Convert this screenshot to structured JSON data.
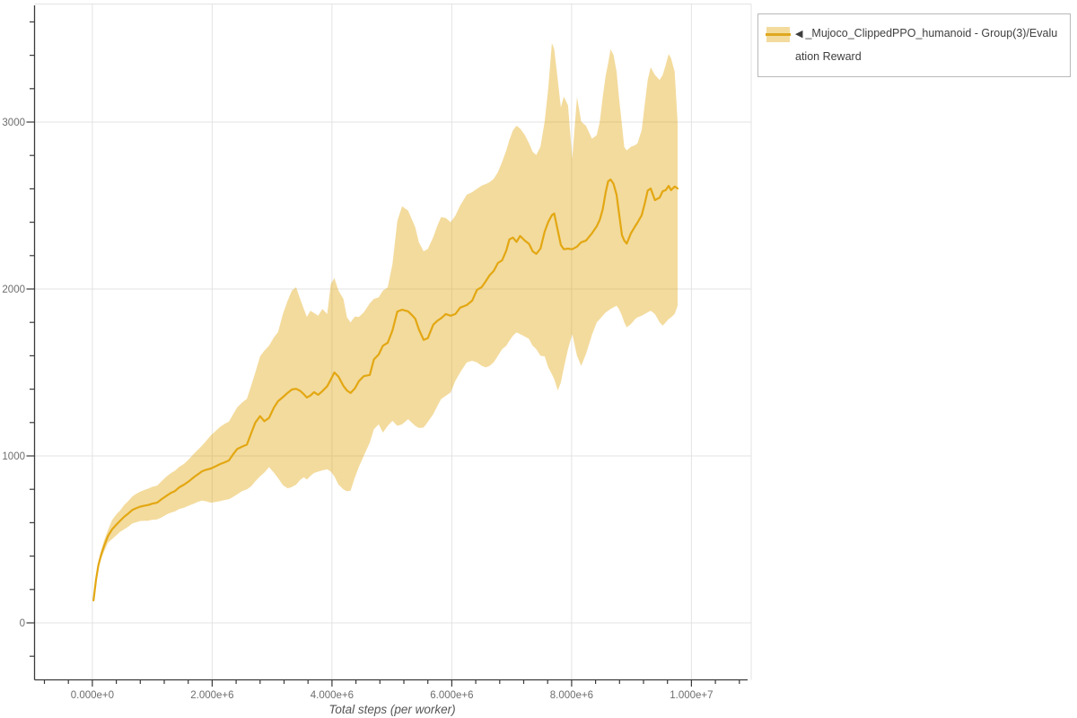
{
  "page": {
    "background": "#ffffff"
  },
  "legend": {
    "marker": "◀",
    "label": "_Mujoco_ClippedPPO_humanoid - Group(3)/Evaluation Reward"
  },
  "colors": {
    "line": "#e3a712",
    "band_fill": "#e3a712",
    "band_opacity": 0.41,
    "grid": "#e3e3e3",
    "axis": "#3a3a3a",
    "tick_label": "#6e6e6e",
    "axis_title": "#555555",
    "legend_border": "#b9b9b9"
  },
  "chart_data": {
    "type": "line",
    "title": "",
    "xlabel": "Total steps (per worker)",
    "ylabel": "",
    "grid": true,
    "legend_position": "top-right",
    "x_tick_labels": [
      "0.000e+0",
      "2.000e+6",
      "4.000e+6",
      "6.000e+6",
      "8.000e+6",
      "1.000e+7"
    ],
    "x_tick_values_millions": [
      0,
      2,
      4,
      6,
      8,
      10
    ],
    "x_minor_tick_step_millions": 0.4,
    "xlim_millions": [
      -0.97,
      11.0
    ],
    "y_tick_labels": [
      "0",
      "1000",
      "2000",
      "3000"
    ],
    "y_tick_values": [
      0,
      1000,
      2000,
      3000
    ],
    "y_minor_tick_step": 200,
    "ylim": [
      -340,
      3710
    ],
    "series": [
      {
        "name": "◀ _Mujoco_ClippedPPO_humanoid - Group(3)/Evaluation Reward",
        "color": "#e3a712",
        "band_opacity": 0.41,
        "points_format": [
          "steps_millions",
          "mean_reward",
          "band_low",
          "band_high"
        ],
        "points": [
          [
            0.02,
            135,
            128,
            142
          ],
          [
            0.06,
            255,
            240,
            270
          ],
          [
            0.1,
            345,
            325,
            365
          ],
          [
            0.15,
            412,
            386,
            438
          ],
          [
            0.2,
            465,
            432,
            498
          ],
          [
            0.26,
            520,
            480,
            556
          ],
          [
            0.33,
            560,
            502,
            616
          ],
          [
            0.4,
            588,
            524,
            650
          ],
          [
            0.46,
            610,
            544,
            672
          ],
          [
            0.53,
            635,
            560,
            706
          ],
          [
            0.6,
            655,
            576,
            730
          ],
          [
            0.67,
            677,
            596,
            758
          ],
          [
            0.74,
            688,
            604,
            775
          ],
          [
            0.8,
            696,
            610,
            786
          ],
          [
            0.87,
            702,
            612,
            796
          ],
          [
            0.93,
            706,
            612,
            804
          ],
          [
            1.0,
            714,
            618,
            815
          ],
          [
            1.08,
            720,
            620,
            822
          ],
          [
            1.16,
            742,
            632,
            850
          ],
          [
            1.24,
            762,
            650,
            878
          ],
          [
            1.31,
            778,
            660,
            896
          ],
          [
            1.38,
            790,
            668,
            912
          ],
          [
            1.45,
            812,
            682,
            935
          ],
          [
            1.53,
            828,
            690,
            952
          ],
          [
            1.61,
            848,
            702,
            980
          ],
          [
            1.7,
            874,
            715,
            1015
          ],
          [
            1.77,
            892,
            726,
            1040
          ],
          [
            1.83,
            908,
            733,
            1062
          ],
          [
            1.9,
            917,
            728,
            1090
          ],
          [
            1.98,
            925,
            720,
            1124
          ],
          [
            2.06,
            938,
            724,
            1150
          ],
          [
            2.14,
            952,
            730,
            1176
          ],
          [
            2.21,
            962,
            736,
            1192
          ],
          [
            2.28,
            973,
            741,
            1206
          ],
          [
            2.35,
            1010,
            755,
            1250
          ],
          [
            2.42,
            1042,
            770,
            1292
          ],
          [
            2.5,
            1056,
            790,
            1320
          ],
          [
            2.58,
            1068,
            800,
            1342
          ],
          [
            2.65,
            1135,
            818,
            1420
          ],
          [
            2.72,
            1200,
            848,
            1500
          ],
          [
            2.8,
            1238,
            878,
            1597
          ],
          [
            2.87,
            1208,
            900,
            1630
          ],
          [
            2.95,
            1228,
            933,
            1661
          ],
          [
            3.03,
            1290,
            900,
            1710
          ],
          [
            3.1,
            1328,
            868,
            1742
          ],
          [
            3.18,
            1352,
            825,
            1850
          ],
          [
            3.26,
            1378,
            806,
            1930
          ],
          [
            3.33,
            1398,
            814,
            1990
          ],
          [
            3.4,
            1402,
            828,
            2011
          ],
          [
            3.47,
            1390,
            856,
            1940
          ],
          [
            3.53,
            1370,
            872,
            1880
          ],
          [
            3.58,
            1350,
            858,
            1833
          ],
          [
            3.64,
            1362,
            880,
            1870
          ],
          [
            3.7,
            1382,
            898,
            1856
          ],
          [
            3.77,
            1366,
            906,
            1840
          ],
          [
            3.84,
            1388,
            914,
            1880
          ],
          [
            3.92,
            1418,
            920,
            1850
          ],
          [
            3.98,
            1458,
            906,
            2030
          ],
          [
            4.04,
            1500,
            878,
            2065
          ],
          [
            4.11,
            1474,
            828,
            1990
          ],
          [
            4.19,
            1420,
            800,
            1941
          ],
          [
            4.25,
            1392,
            788,
            1830
          ],
          [
            4.31,
            1377,
            792,
            1800
          ],
          [
            4.38,
            1404,
            870,
            1835
          ],
          [
            4.45,
            1448,
            935,
            1833
          ],
          [
            4.53,
            1478,
            1000,
            1860
          ],
          [
            4.63,
            1485,
            1080,
            1914
          ],
          [
            4.7,
            1578,
            1160,
            1941
          ],
          [
            4.78,
            1608,
            1190,
            1950
          ],
          [
            4.85,
            1660,
            1140,
            1990
          ],
          [
            4.93,
            1678,
            1180,
            2010
          ],
          [
            5.01,
            1752,
            1210,
            2150
          ],
          [
            5.09,
            1865,
            1180,
            2408
          ],
          [
            5.17,
            1876,
            1190,
            2495
          ],
          [
            5.27,
            1866,
            1220,
            2470
          ],
          [
            5.33,
            1845,
            1200,
            2420
          ],
          [
            5.39,
            1822,
            1180,
            2370
          ],
          [
            5.45,
            1758,
            1167,
            2280
          ],
          [
            5.53,
            1695,
            1170,
            2226
          ],
          [
            5.6,
            1706,
            1204,
            2240
          ],
          [
            5.69,
            1786,
            1250,
            2310
          ],
          [
            5.76,
            1810,
            1300,
            2380
          ],
          [
            5.82,
            1824,
            1340,
            2430
          ],
          [
            5.9,
            1850,
            1360,
            2425
          ],
          [
            5.98,
            1840,
            1380,
            2400
          ],
          [
            6.06,
            1850,
            1450,
            2440
          ],
          [
            6.14,
            1888,
            1500,
            2500
          ],
          [
            6.25,
            1904,
            1560,
            2565
          ],
          [
            6.34,
            1930,
            1570,
            2580
          ],
          [
            6.42,
            1994,
            1560,
            2600
          ],
          [
            6.5,
            2012,
            1540,
            2620
          ],
          [
            6.57,
            2048,
            1530,
            2629
          ],
          [
            6.63,
            2082,
            1540,
            2640
          ],
          [
            6.7,
            2108,
            1560,
            2660
          ],
          [
            6.77,
            2156,
            1600,
            2700
          ],
          [
            6.84,
            2172,
            1640,
            2762
          ],
          [
            6.91,
            2230,
            1660,
            2830
          ],
          [
            6.96,
            2296,
            1690,
            2892
          ],
          [
            7.02,
            2308,
            1720,
            2950
          ],
          [
            7.08,
            2282,
            1740,
            2978
          ],
          [
            7.14,
            2318,
            1730,
            2962
          ],
          [
            7.22,
            2290,
            1715,
            2922
          ],
          [
            7.29,
            2270,
            1700,
            2872
          ],
          [
            7.35,
            2226,
            1660,
            2822
          ],
          [
            7.41,
            2210,
            1640,
            2802
          ],
          [
            7.48,
            2242,
            1600,
            2852
          ],
          [
            7.55,
            2344,
            1597,
            3005
          ],
          [
            7.61,
            2402,
            1530,
            3205
          ],
          [
            7.67,
            2442,
            1490,
            3473
          ],
          [
            7.71,
            2452,
            1460,
            3438
          ],
          [
            7.77,
            2350,
            1392,
            3252
          ],
          [
            7.82,
            2264,
            1440,
            3088
          ],
          [
            7.87,
            2238,
            1527,
            3152
          ],
          [
            7.94,
            2242,
            1640,
            3100
          ],
          [
            8.01,
            2238,
            1730,
            2780
          ],
          [
            8.09,
            2254,
            1600,
            3150
          ],
          [
            8.16,
            2280,
            1540,
            3002
          ],
          [
            8.24,
            2290,
            1610,
            2978
          ],
          [
            8.34,
            2334,
            1726,
            2900
          ],
          [
            8.42,
            2376,
            1800,
            2922
          ],
          [
            8.47,
            2415,
            1820,
            3002
          ],
          [
            8.52,
            2478,
            1840,
            3152
          ],
          [
            8.57,
            2580,
            1860,
            3280
          ],
          [
            8.61,
            2645,
            1870,
            3352
          ],
          [
            8.65,
            2656,
            1880,
            3436
          ],
          [
            8.7,
            2630,
            1890,
            3402
          ],
          [
            8.75,
            2564,
            1900,
            3302
          ],
          [
            8.79,
            2458,
            1880,
            3152
          ],
          [
            8.84,
            2322,
            1840,
            2982
          ],
          [
            8.88,
            2290,
            1800,
            2850
          ],
          [
            8.92,
            2272,
            1770,
            2830
          ],
          [
            8.99,
            2334,
            1790,
            2852
          ],
          [
            9.06,
            2376,
            1820,
            2862
          ],
          [
            9.1,
            2398,
            1830,
            2872
          ],
          [
            9.17,
            2442,
            1840,
            2952
          ],
          [
            9.22,
            2510,
            1850,
            3102
          ],
          [
            9.27,
            2590,
            1860,
            3252
          ],
          [
            9.32,
            2602,
            1870,
            3328
          ],
          [
            9.39,
            2532,
            1850,
            3282
          ],
          [
            9.47,
            2548,
            1800,
            3252
          ],
          [
            9.52,
            2586,
            1780,
            3282
          ],
          [
            9.57,
            2592,
            1800,
            3342
          ],
          [
            9.62,
            2618,
            1820,
            3408
          ],
          [
            9.66,
            2592,
            1830,
            3382
          ],
          [
            9.72,
            2614,
            1850,
            3302
          ],
          [
            9.77,
            2602,
            1900,
            3000
          ]
        ]
      }
    ]
  }
}
